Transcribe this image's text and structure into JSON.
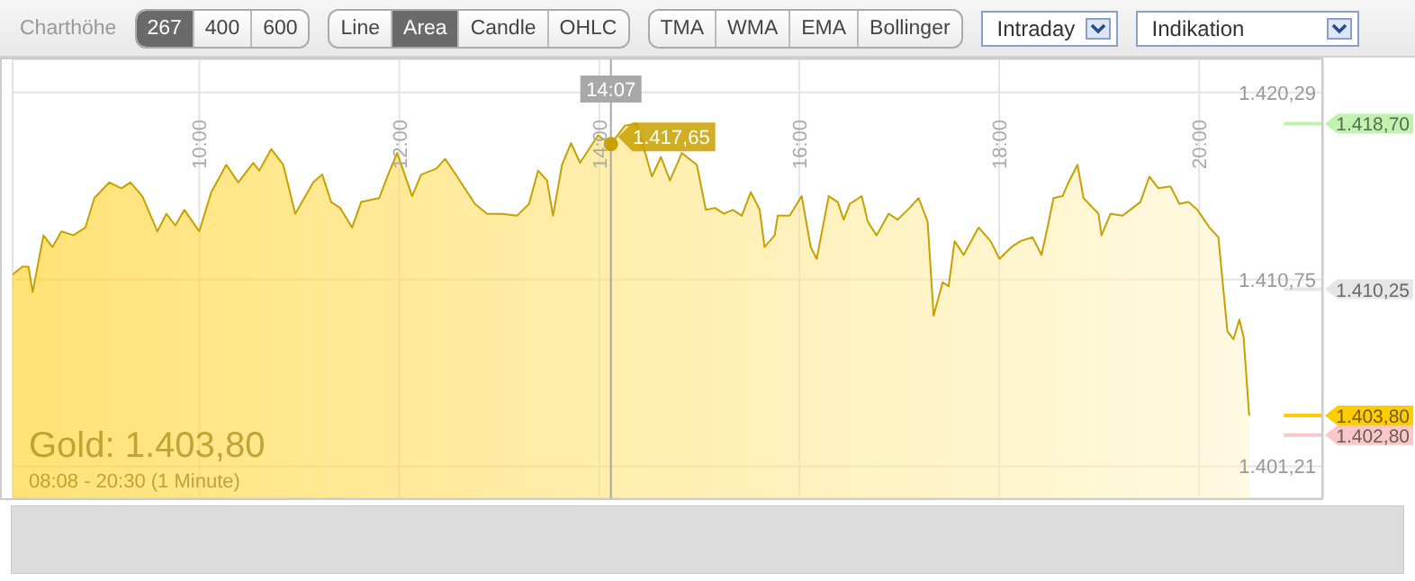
{
  "chart_data": {
    "type": "area",
    "title": "Gold: 1.403,80",
    "subtitle": "08:08 - 20:30 (1 Minute)",
    "annotations": [
      "Charthöhe",
      "267",
      "400",
      "600",
      "Line",
      "Area",
      "Candle",
      "OHLC",
      "TMA",
      "WMA",
      "EMA",
      "Bollinger",
      "Intraday",
      "Indikation",
      {
        "text": "1.417,65",
        "x": 14.1167,
        "y": 1417.65
      }
    ],
    "x": [
      8.1333,
      8.232,
      8.292,
      8.334,
      8.442,
      8.532,
      8.622,
      8.741,
      8.861,
      8.951,
      9.101,
      9.221,
      9.311,
      9.431,
      9.581,
      9.671,
      9.761,
      9.851,
      10.0,
      10.12,
      10.27,
      10.39,
      10.54,
      10.6,
      10.72,
      10.84,
      10.96,
      11.14,
      11.23,
      11.319,
      11.409,
      11.529,
      11.619,
      11.799,
      11.889,
      11.979,
      12.129,
      12.219,
      12.369,
      12.459,
      12.578,
      12.758,
      12.878,
      13.028,
      13.178,
      13.298,
      13.388,
      13.478,
      13.538,
      13.628,
      13.718,
      13.808,
      13.987,
      14.1167,
      14.257,
      14.377,
      14.527,
      14.617,
      14.707,
      14.826,
      14.976,
      15.066,
      15.156,
      15.246,
      15.336,
      15.426,
      15.516,
      15.605,
      15.653,
      15.755,
      15.785,
      15.905,
      16.025,
      16.115,
      16.175,
      16.295,
      16.385,
      16.445,
      16.505,
      16.625,
      16.685,
      16.774,
      16.894,
      16.984,
      17.104,
      17.194,
      17.284,
      17.344,
      17.434,
      17.494,
      17.554,
      17.644,
      17.794,
      17.914,
      18.003,
      18.123,
      18.213,
      18.333,
      18.423,
      18.483,
      18.543,
      18.633,
      18.693,
      18.783,
      18.843,
      18.993,
      19.023,
      19.113,
      19.233,
      19.412,
      19.502,
      19.592,
      19.712,
      19.802,
      19.892,
      19.982,
      20.102,
      20.192,
      20.282,
      20.342,
      20.402,
      20.444,
      20.5
    ],
    "series": [
      {
        "color": "#c8a000",
        "values": [
          1411.0,
          1411.4,
          1411.4,
          1410.1,
          1413.0,
          1412.4,
          1413.2,
          1413.0,
          1413.4,
          1414.9,
          1415.7,
          1415.4,
          1415.7,
          1415.0,
          1413.2,
          1414.1,
          1413.5,
          1414.3,
          1413.2,
          1415.2,
          1416.6,
          1415.7,
          1416.7,
          1416.3,
          1417.4,
          1416.6,
          1414.1,
          1415.7,
          1416.1,
          1414.7,
          1414.4,
          1413.4,
          1414.7,
          1414.9,
          1416.1,
          1417.2,
          1415.0,
          1416.1,
          1416.4,
          1416.9,
          1416.0,
          1414.6,
          1414.1,
          1414.1,
          1414.0,
          1414.6,
          1416.3,
          1415.8,
          1414.0,
          1416.6,
          1417.7,
          1416.7,
          1418.1,
          1417.65,
          1418.6,
          1418.7,
          1416.0,
          1417.0,
          1415.8,
          1417.2,
          1416.6,
          1414.3,
          1414.4,
          1414.1,
          1414.3,
          1414.0,
          1415.2,
          1414.3,
          1412.4,
          1413.0,
          1414.0,
          1414.0,
          1415.0,
          1412.4,
          1411.8,
          1415.0,
          1414.7,
          1413.8,
          1414.6,
          1415.0,
          1413.7,
          1413.0,
          1414.1,
          1413.8,
          1414.4,
          1414.9,
          1413.7,
          1408.9,
          1410.6,
          1410.4,
          1412.7,
          1412.0,
          1413.4,
          1412.7,
          1411.8,
          1412.4,
          1412.7,
          1412.9,
          1412.0,
          1413.4,
          1414.9,
          1415.0,
          1415.7,
          1416.6,
          1414.9,
          1414.1,
          1413.0,
          1414.1,
          1414.0,
          1414.7,
          1416.0,
          1415.4,
          1415.5,
          1414.6,
          1414.7,
          1414.3,
          1413.4,
          1412.9,
          1408.1,
          1407.7,
          1408.7,
          1407.8,
          1403.8
        ]
      }
    ],
    "xlim": [
      8.1333,
      21.24
    ],
    "xticks": [
      {
        "value": 10,
        "label": "10:00"
      },
      {
        "value": 12,
        "label": "12:00"
      },
      {
        "value": 14,
        "label": "14:00"
      },
      {
        "value": 16,
        "label": "16:00"
      },
      {
        "value": 18,
        "label": "18:00"
      },
      {
        "value": 20,
        "label": "20:00"
      }
    ],
    "ylim": [
      1399.58,
      1421.98
    ],
    "yticks": [
      {
        "value": 1401.21,
        "label": "1.401,21"
      },
      {
        "value": 1410.75,
        "label": "1.410,75"
      },
      {
        "value": 1420.29,
        "label": "1.420,29"
      }
    ],
    "grid": true,
    "ref_lines": [
      {
        "axis": "x",
        "value": 14.1167,
        "label": "14:07",
        "color": "#a8a8a8"
      },
      {
        "axis": "y",
        "value": 1418.7,
        "label": "1.418,70",
        "color": "#c2f2b0"
      },
      {
        "axis": "y",
        "value": 1410.25,
        "label": "1.410,25",
        "color": "#e6e6e6"
      },
      {
        "axis": "y",
        "value": 1403.8,
        "label": "1.403,80",
        "color": "#ffcc00"
      },
      {
        "axis": "y",
        "value": 1402.8,
        "label": "1.402,80",
        "color": "#f8c8c8"
      }
    ]
  }
}
